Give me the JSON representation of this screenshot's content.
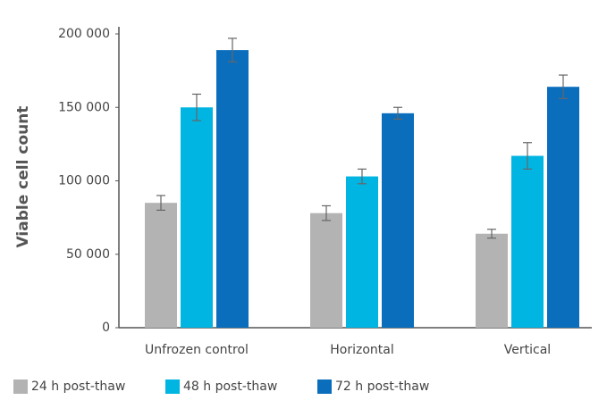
{
  "chart_data": {
    "type": "bar",
    "y_label": "Viable cell count",
    "categories": [
      "Unfrozen control",
      "Horizontal",
      "Vertical"
    ],
    "series": [
      {
        "name": "24 h post-thaw",
        "color": "#b3b3b3",
        "values": [
          85000,
          78000,
          64000
        ],
        "errors": [
          5000,
          5000,
          3000
        ]
      },
      {
        "name": "48 h post-thaw",
        "color": "#00b5e2",
        "values": [
          150000,
          103000,
          117000
        ],
        "errors": [
          9000,
          5000,
          9000
        ]
      },
      {
        "name": "72 h post-thaw",
        "color": "#0a6ebd",
        "values": [
          189000,
          146000,
          164000
        ],
        "errors": [
          8000,
          4000,
          8000
        ]
      }
    ],
    "ylim": [
      0,
      200000
    ],
    "yticks": [
      0,
      {
        "value": 50000,
        "label": "50 000"
      },
      {
        "value": 100000,
        "label": "100 000"
      },
      {
        "value": 150000,
        "label": "150 000"
      },
      {
        "value": 200000,
        "label": "200 000"
      }
    ],
    "grid": false,
    "legend": "bottom"
  }
}
